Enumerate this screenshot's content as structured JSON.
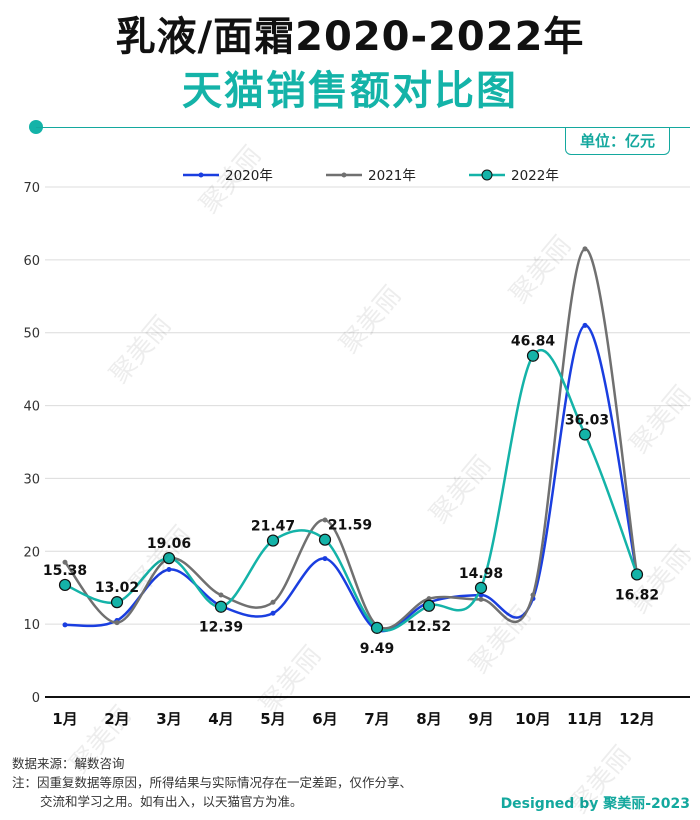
{
  "title_line1": "乳液/面霜2020-2022年",
  "title_line2": "天猫销售额对比图",
  "unit": "单位：亿元",
  "source": "数据来源：解数咨询",
  "note_line1": "注：因重复数据等原因，所得结果与实际情况存在一定差距，仅作分享、",
  "note_line2": "交流和学习之用。如有出入，以天猫官方为准。",
  "credit": "Designed by 聚美丽-2023",
  "watermark": "聚美丽",
  "colors": {
    "s2020": "#1a3ee0",
    "s2021": "#707070",
    "s2022": "#14b3a8",
    "accent": "#14a89e"
  },
  "chart_data": {
    "type": "line",
    "title": "乳液/面霜2020-2022年天猫销售额对比图",
    "ylabel": "亿元",
    "xlabel": "",
    "ylim": [
      0,
      70
    ],
    "yticks": [
      0,
      10,
      20,
      30,
      40,
      50,
      60,
      70
    ],
    "grid": true,
    "legend_position": "top",
    "categories": [
      "1月",
      "2月",
      "3月",
      "4月",
      "5月",
      "6月",
      "7月",
      "8月",
      "9月",
      "10月",
      "11月",
      "12月"
    ],
    "series": [
      {
        "name": "2020年",
        "values": [
          9.9,
          10.5,
          17.5,
          12.5,
          11.5,
          19.0,
          9.2,
          13.0,
          14.0,
          13.5,
          51.0,
          16.8
        ],
        "labels": false
      },
      {
        "name": "2021年",
        "values": [
          18.5,
          10.2,
          19.0,
          14.0,
          13.0,
          24.3,
          9.8,
          13.5,
          13.4,
          14.0,
          61.5,
          16.8
        ],
        "labels": false
      },
      {
        "name": "2022年",
        "values": [
          15.38,
          13.02,
          19.06,
          12.39,
          21.47,
          21.59,
          9.49,
          12.52,
          14.98,
          46.84,
          36.03,
          16.82
        ],
        "labels": true,
        "label_text": [
          "15.38",
          "13.02",
          "19.06",
          "12.39",
          "21.47",
          "21.59",
          "9.49",
          "12.52",
          "14.98",
          "46.84",
          "36.03",
          "16.82"
        ]
      }
    ]
  }
}
